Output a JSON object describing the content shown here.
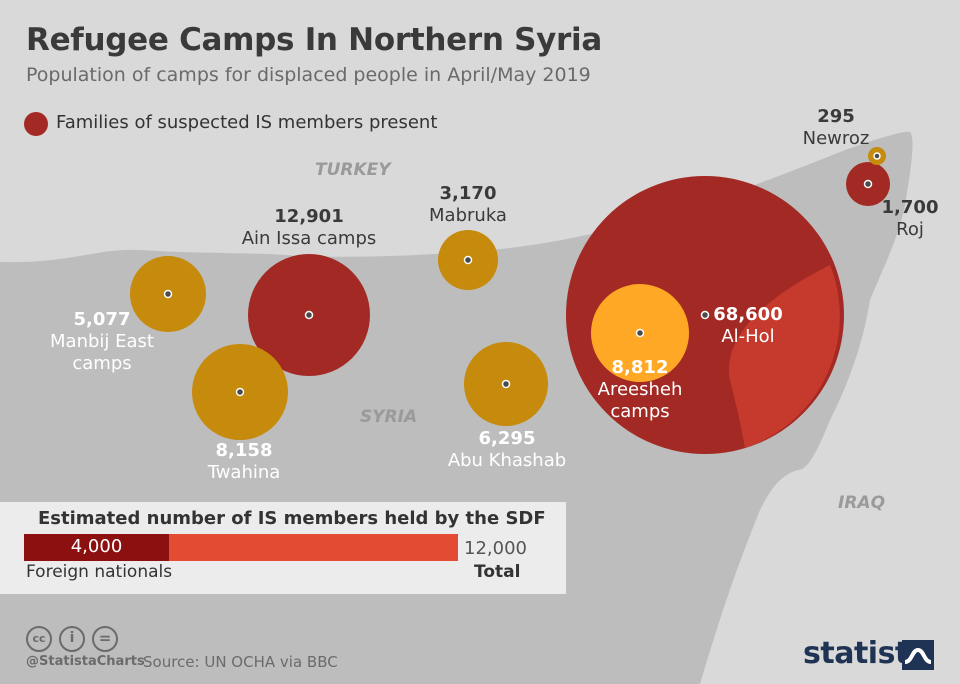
{
  "header": {
    "title": "Refugee Camps In Northern Syria",
    "subtitle": "Population of camps for displaced people in April/May 2019"
  },
  "legend": {
    "label": "Families of suspected IS members present",
    "color": "#a32a24"
  },
  "countries": {
    "turkey": "TURKEY",
    "syria": "SYRIA",
    "iraq": "IRAQ"
  },
  "camps": [
    {
      "name": "Ain Issa camps",
      "value": "12,901",
      "is_families": true
    },
    {
      "name": "Mabruka",
      "value": "3,170",
      "is_families": false
    },
    {
      "name": "Manbij East camps",
      "name_lines": [
        "Manbij East",
        "camps"
      ],
      "value": "5,077",
      "is_families": false
    },
    {
      "name": "Twahina",
      "value": "8,158",
      "is_families": false
    },
    {
      "name": "Abu Khashab",
      "value": "6,295",
      "is_families": false
    },
    {
      "name": "Areesheh camps",
      "name_lines": [
        "Areesheh",
        "camps"
      ],
      "value": "8,812",
      "is_families": false
    },
    {
      "name": "Al-Hol",
      "value": "68,600",
      "is_families": true
    },
    {
      "name": "Newroz",
      "value": "295",
      "is_families": false
    },
    {
      "name": "Roj",
      "value": "1,700",
      "is_families": true
    }
  ],
  "colors": {
    "families": "#a32a24",
    "families_overlap": "#c63a2e",
    "other": "#c68a0c",
    "areesheh": "#ffa826",
    "land": "#bdbdbd",
    "background": "#d9d9d9"
  },
  "sdf": {
    "title": "Estimated number of IS members held by the SDF",
    "foreign_value": "4,000",
    "foreign_label": "Foreign nationals",
    "total_value": "12,000",
    "total_label": "Total",
    "foreign_number": 4000,
    "total_number": 12000
  },
  "footer": {
    "handle": "@StatistaCharts",
    "source": "Source: UN OCHA via BBC",
    "logo": "statista",
    "icons": [
      "cc-icon",
      "by-icon",
      "nd-icon"
    ],
    "icon_glyphs": [
      "cc",
      "i",
      "="
    ]
  }
}
